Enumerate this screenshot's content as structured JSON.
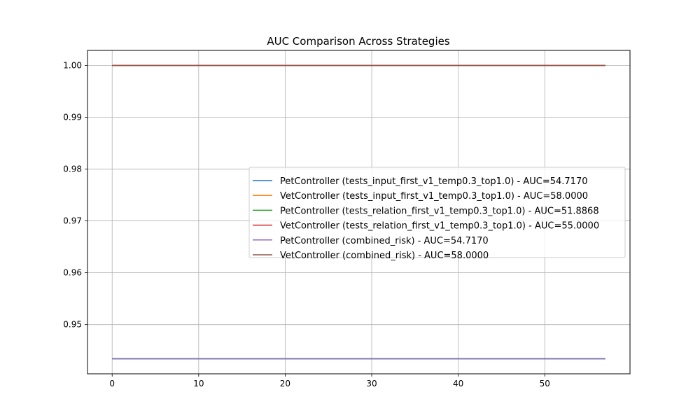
{
  "chart_data": {
    "type": "line",
    "title": "AUC Comparison Across Strategies",
    "xlabel": "",
    "ylabel": "",
    "xlim": [
      -2.85,
      59.85
    ],
    "ylim": [
      0.9405,
      1.0029
    ],
    "grid": true,
    "legend_position": "center-right",
    "x_ticks": [
      0,
      10,
      20,
      30,
      40,
      50
    ],
    "x_tick_labels": [
      "0",
      "10",
      "20",
      "30",
      "40",
      "50"
    ],
    "y_ticks": [
      0.95,
      0.96,
      0.97,
      0.98,
      0.99,
      1.0
    ],
    "y_tick_labels": [
      "0.95",
      "0.96",
      "0.97",
      "0.98",
      "0.99",
      "1.00"
    ],
    "series": [
      {
        "name": "PetController (tests_input_first_v1_temp0.3_top1.0) - AUC=54.7170",
        "color": "#1f77b4",
        "x": [
          0,
          57
        ],
        "y": [
          0.9434,
          0.9434
        ]
      },
      {
        "name": "VetController (tests_input_first_v1_temp0.3_top1.0) - AUC=58.0000",
        "color": "#ff7f0e",
        "x": [
          0,
          57
        ],
        "y": [
          1.0,
          1.0
        ]
      },
      {
        "name": "PetController (tests_relation_first_v1_temp0.3_top1.0) - AUC=51.8868",
        "color": "#2ca02c",
        "x": [
          0,
          57
        ],
        "y": [
          0.9434,
          0.9434
        ]
      },
      {
        "name": "VetController (tests_relation_first_v1_temp0.3_top1.0) - AUC=55.0000",
        "color": "#d62728",
        "x": [
          0,
          57
        ],
        "y": [
          1.0,
          1.0
        ]
      },
      {
        "name": "PetController (combined_risk) - AUC=54.7170",
        "color": "#9467bd",
        "x": [
          0,
          57
        ],
        "y": [
          0.9434,
          0.9434
        ]
      },
      {
        "name": "VetController (combined_risk) - AUC=58.0000",
        "color": "#8c564b",
        "x": [
          0,
          57
        ],
        "y": [
          1.0,
          1.0
        ]
      }
    ]
  }
}
